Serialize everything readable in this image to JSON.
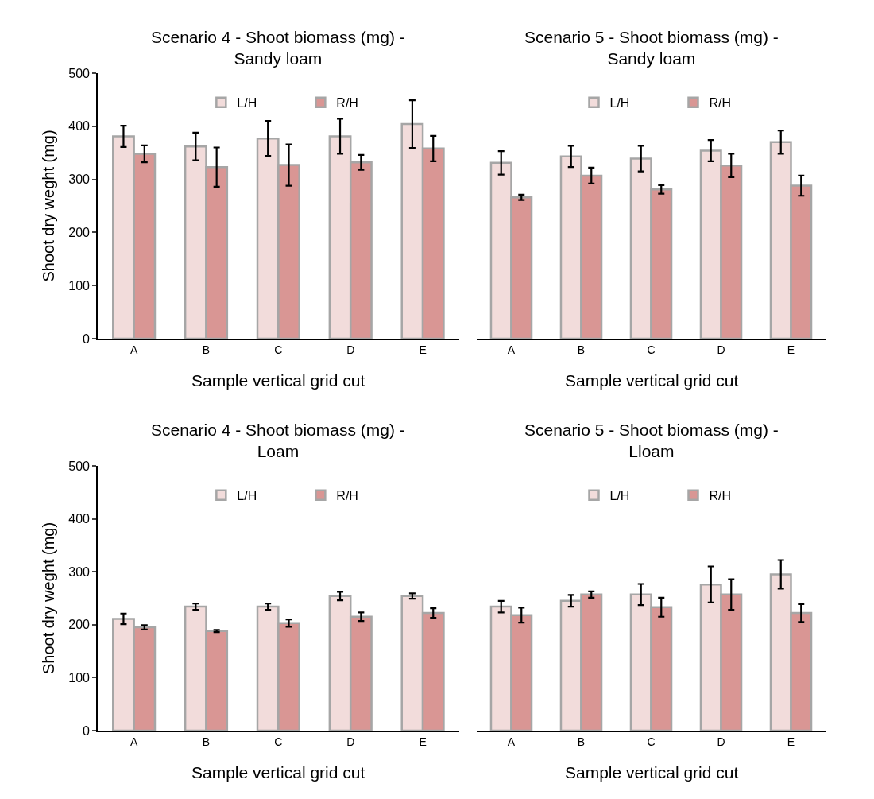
{
  "chart_data": [
    {
      "type": "bar",
      "title": "Scenario 4 - Shoot biomass (mg) -\nSandy loam",
      "xlabel": "Sample vertical grid cut",
      "ylabel": "Shoot dry weght (mg)",
      "categories": [
        "A",
        "B",
        "C",
        "D",
        "E"
      ],
      "ylim": [
        0,
        500
      ],
      "yticks": [
        0,
        100,
        200,
        300,
        400,
        500
      ],
      "legend": "top",
      "series": [
        {
          "name": "L/H",
          "color": "#f2dcdb",
          "values": [
            381,
            362,
            377,
            381,
            404
          ],
          "errors": [
            20,
            26,
            33,
            33,
            45
          ]
        },
        {
          "name": "R/H",
          "color": "#d99694",
          "values": [
            348,
            323,
            327,
            332,
            358
          ],
          "errors": [
            16,
            37,
            39,
            14,
            24
          ]
        }
      ]
    },
    {
      "type": "bar",
      "title": "Scenario 5 - Shoot biomass (mg) -\nSandy loam",
      "xlabel": "Sample vertical grid cut",
      "categories": [
        "A",
        "B",
        "C",
        "D",
        "E"
      ],
      "ylim": [
        0,
        500
      ],
      "yticks": [
        0,
        100,
        200,
        300,
        400,
        500
      ],
      "legend": "top",
      "tick_labels": "x",
      "series": [
        {
          "name": "L/H",
          "color": "#f2dcdb",
          "values": [
            331,
            343,
            339,
            354,
            370
          ],
          "errors": [
            22,
            20,
            24,
            20,
            22
          ]
        },
        {
          "name": "R/H",
          "color": "#d99694",
          "values": [
            266,
            307,
            281,
            326,
            288
          ],
          "errors": [
            5,
            15,
            8,
            22,
            19
          ]
        }
      ]
    },
    {
      "type": "bar",
      "title": "Scenario 4 - Shoot biomass (mg) -\nLoam",
      "xlabel": "Sample vertical grid cut",
      "ylabel": "Shoot dry weght (mg)",
      "categories": [
        "A",
        "B",
        "C",
        "D",
        "E"
      ],
      "ylim": [
        0,
        500
      ],
      "yticks": [
        0,
        100,
        200,
        300,
        400,
        500
      ],
      "legend": "top",
      "series": [
        {
          "name": "L/H",
          "color": "#f2dcdb",
          "values": [
            211,
            234,
            234,
            254,
            254
          ],
          "errors": [
            10,
            6,
            6,
            8,
            5
          ]
        },
        {
          "name": "R/H",
          "color": "#d99694",
          "values": [
            195,
            188,
            203,
            215,
            222
          ],
          "errors": [
            4,
            2,
            7,
            8,
            9
          ]
        }
      ]
    },
    {
      "type": "bar",
      "title": "Scenario 5 - Shoot biomass (mg) -\nLloam",
      "xlabel": "Sample vertical grid cut",
      "categories": [
        "A",
        "B",
        "C",
        "D",
        "E"
      ],
      "ylim": [
        0,
        500
      ],
      "yticks": [
        0,
        100,
        200,
        300,
        400,
        500
      ],
      "legend": "top",
      "tick_labels": "x",
      "series": [
        {
          "name": "L/H",
          "color": "#f2dcdb",
          "values": [
            234,
            245,
            257,
            276,
            295
          ],
          "errors": [
            11,
            11,
            20,
            34,
            27
          ]
        },
        {
          "name": "R/H",
          "color": "#d99694",
          "values": [
            218,
            257,
            233,
            257,
            222
          ],
          "errors": [
            14,
            6,
            18,
            29,
            17
          ]
        }
      ]
    }
  ]
}
